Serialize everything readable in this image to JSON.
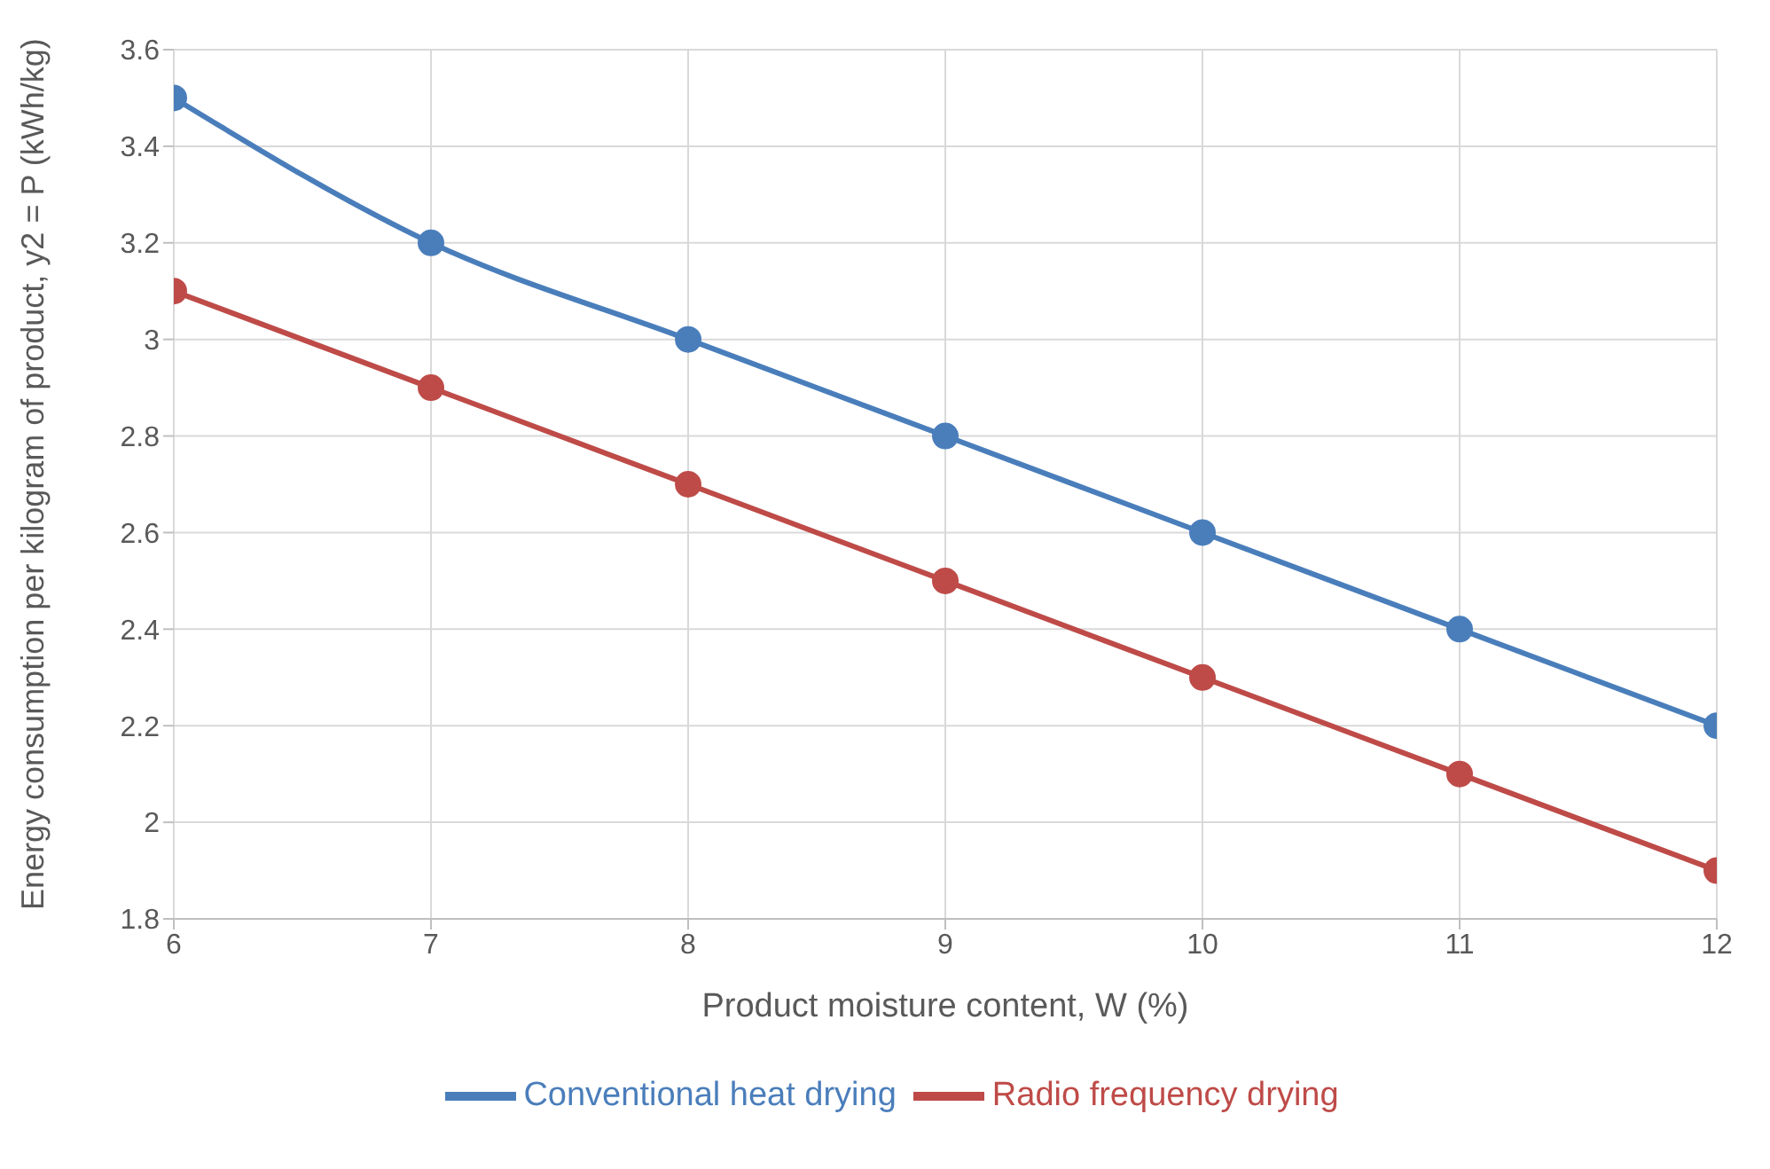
{
  "chart_data": {
    "type": "line",
    "xlabel": "Product moisture content, W (%)",
    "ylabel": "Energy consumption per kilogram of product, y2 = P (kWh/kg)",
    "x": [
      6,
      7,
      8,
      9,
      10,
      11,
      12
    ],
    "series": [
      {
        "name": "Conventional heat drying",
        "color": "#4a7ebb",
        "values": [
          3.5,
          3.2,
          3.0,
          2.8,
          2.6,
          2.4,
          2.2
        ]
      },
      {
        "name": "Radio frequency drying",
        "color": "#be4b48",
        "values": [
          3.1,
          2.9,
          2.7,
          2.5,
          2.3,
          2.1,
          1.9
        ]
      }
    ],
    "xlim": [
      6,
      12
    ],
    "xticks": [
      6,
      7,
      8,
      9,
      10,
      11,
      12
    ],
    "ylim": [
      1.8,
      3.6
    ],
    "yticks": [
      1.8,
      2,
      2.2,
      2.4,
      2.6,
      2.8,
      3,
      3.2,
      3.4,
      3.6
    ],
    "grid": true,
    "legend": "bottom",
    "marker": "circle",
    "line_style": "solid"
  }
}
